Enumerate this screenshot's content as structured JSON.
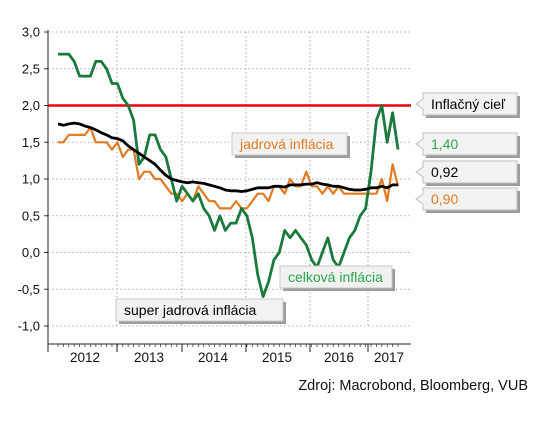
{
  "chart_data": {
    "type": "line",
    "title": "",
    "xlabel": "",
    "ylabel": "",
    "ylim": [
      -1.0,
      3.0
    ],
    "y_ticks": [
      "3,0",
      "2,5",
      "2,0",
      "1,5",
      "1,0",
      "0,5",
      "0,0",
      "-0,5",
      "-1,0"
    ],
    "x_ticks": [
      "2012",
      "2013",
      "2014",
      "2015",
      "2016",
      "2017"
    ],
    "x_start": "2012-01",
    "x_end": "2017-04",
    "grid": true,
    "target": {
      "label": "Inflačný cieľ",
      "value": 2.0,
      "color": "#e8000b"
    },
    "annotations": {
      "core": "jadrová inflácia",
      "headline": "celková inflácia",
      "supercore": "super jadrová inflácia"
    },
    "end_labels": [
      {
        "series": "headline",
        "text": "1,40",
        "color": "#2aa54a"
      },
      {
        "series": "supercore",
        "text": "0,92",
        "color": "#000000"
      },
      {
        "series": "core",
        "text": "0,90",
        "color": "#e07b22"
      }
    ],
    "source": "Zdroj: Macrobond, Bloomberg, VUB",
    "series": [
      {
        "key": "headline",
        "color": "#1a7a3e",
        "values": [
          2.7,
          2.7,
          2.7,
          2.6,
          2.4,
          2.4,
          2.4,
          2.6,
          2.6,
          2.5,
          2.3,
          2.3,
          2.1,
          2.0,
          1.8,
          1.2,
          1.3,
          1.6,
          1.6,
          1.4,
          1.3,
          1.0,
          0.7,
          0.9,
          0.8,
          0.7,
          0.8,
          0.6,
          0.5,
          0.3,
          0.5,
          0.3,
          0.4,
          0.4,
          0.6,
          0.5,
          0.2,
          -0.3,
          -0.6,
          -0.4,
          -0.1,
          0.0,
          0.3,
          0.2,
          0.3,
          0.2,
          0.1,
          -0.1,
          -0.2,
          0.0,
          0.2,
          -0.1,
          -0.2,
          0.0,
          0.2,
          0.3,
          0.5,
          0.6,
          1.1,
          1.8,
          2.0,
          1.5,
          1.9,
          1.4
        ]
      },
      {
        "key": "core",
        "color": "#e07b22",
        "values": [
          1.5,
          1.5,
          1.6,
          1.6,
          1.6,
          1.6,
          1.7,
          1.5,
          1.5,
          1.5,
          1.4,
          1.5,
          1.3,
          1.4,
          1.4,
          1.0,
          1.1,
          1.1,
          1.0,
          1.0,
          0.9,
          0.8,
          0.8,
          0.7,
          0.8,
          0.7,
          0.9,
          0.8,
          0.7,
          0.7,
          0.6,
          0.6,
          0.6,
          0.7,
          0.6,
          0.6,
          0.7,
          0.8,
          0.8,
          0.7,
          0.9,
          0.9,
          0.8,
          1.0,
          0.9,
          0.9,
          1.1,
          0.9,
          0.9,
          0.8,
          0.9,
          0.8,
          0.9,
          0.8,
          0.8,
          0.8,
          0.8,
          0.8,
          0.8,
          0.8,
          1.0,
          0.7,
          1.2,
          0.9
        ]
      },
      {
        "key": "supercore",
        "color": "#000000",
        "values": [
          1.75,
          1.73,
          1.75,
          1.76,
          1.75,
          1.72,
          1.7,
          1.67,
          1.63,
          1.6,
          1.56,
          1.55,
          1.52,
          1.45,
          1.4,
          1.35,
          1.3,
          1.25,
          1.2,
          1.12,
          1.05,
          1.0,
          0.98,
          0.96,
          0.95,
          0.96,
          0.95,
          0.94,
          0.92,
          0.9,
          0.88,
          0.85,
          0.84,
          0.84,
          0.83,
          0.84,
          0.86,
          0.88,
          0.88,
          0.88,
          0.9,
          0.9,
          0.89,
          0.92,
          0.92,
          0.92,
          0.93,
          0.93,
          0.95,
          0.93,
          0.92,
          0.9,
          0.9,
          0.88,
          0.86,
          0.85,
          0.85,
          0.86,
          0.88,
          0.88,
          0.9,
          0.88,
          0.92,
          0.92
        ]
      }
    ]
  }
}
